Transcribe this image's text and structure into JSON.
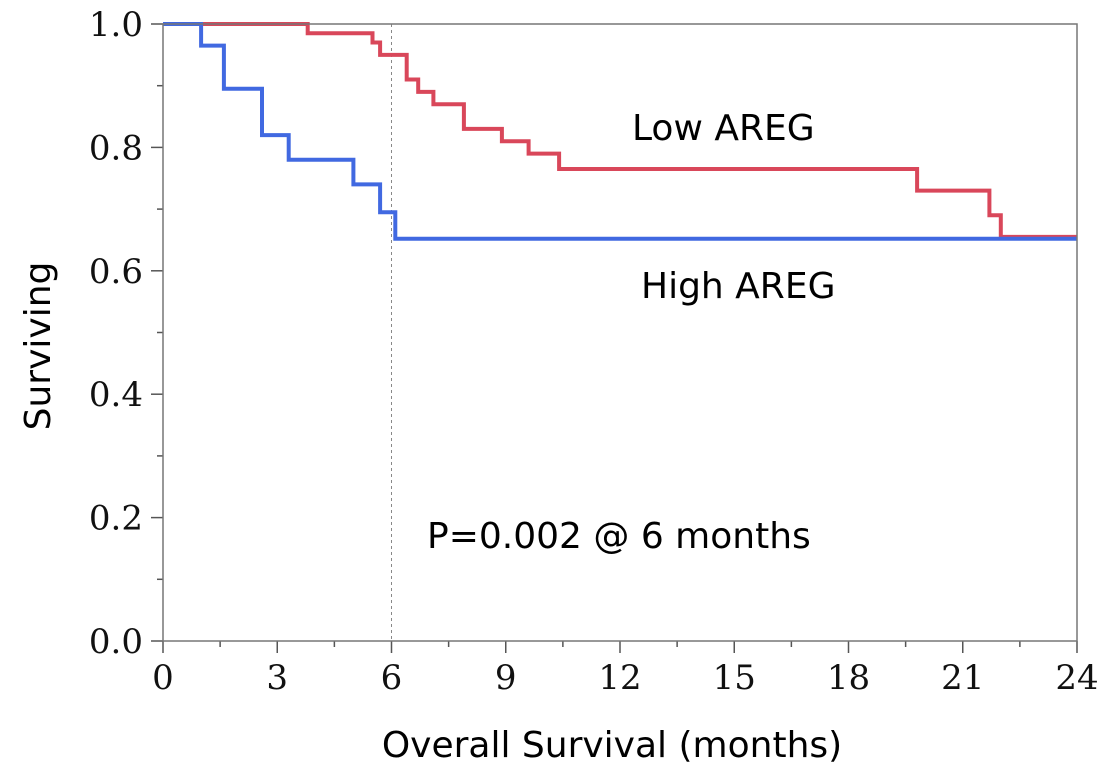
{
  "chart_data": {
    "type": "line",
    "step": true,
    "xlabel": "Overall Survival (months)",
    "ylabel": "Surviving",
    "xlim": [
      0,
      24
    ],
    "ylim": [
      0,
      1
    ],
    "xticks": [
      0,
      3,
      6,
      9,
      12,
      15,
      18,
      21,
      24
    ],
    "yticks": [
      0.0,
      0.2,
      0.4,
      0.6,
      0.8,
      1.0
    ],
    "ytick_labels": [
      "0.0",
      "0.2",
      "0.4",
      "0.6",
      "0.8",
      "1.0"
    ],
    "grid": false,
    "reference_line_x": 6,
    "series": [
      {
        "name": "Low AREG",
        "color": "#d9475a",
        "points": [
          [
            0,
            1.0
          ],
          [
            3.8,
            1.0
          ],
          [
            3.8,
            0.985
          ],
          [
            5.5,
            0.985
          ],
          [
            5.5,
            0.97
          ],
          [
            5.7,
            0.97
          ],
          [
            5.7,
            0.95
          ],
          [
            6.4,
            0.95
          ],
          [
            6.4,
            0.91
          ],
          [
            6.7,
            0.91
          ],
          [
            6.7,
            0.89
          ],
          [
            7.1,
            0.89
          ],
          [
            7.1,
            0.87
          ],
          [
            7.9,
            0.87
          ],
          [
            7.9,
            0.83
          ],
          [
            8.9,
            0.83
          ],
          [
            8.9,
            0.81
          ],
          [
            9.6,
            0.81
          ],
          [
            9.6,
            0.79
          ],
          [
            10.4,
            0.79
          ],
          [
            10.4,
            0.765
          ],
          [
            19.8,
            0.765
          ],
          [
            19.8,
            0.73
          ],
          [
            21.7,
            0.73
          ],
          [
            21.7,
            0.69
          ],
          [
            22.0,
            0.69
          ],
          [
            22.0,
            0.655
          ],
          [
            24,
            0.655
          ]
        ]
      },
      {
        "name": "High AREG",
        "color": "#4169e1",
        "points": [
          [
            0,
            1.0
          ],
          [
            1.0,
            1.0
          ],
          [
            1.0,
            0.965
          ],
          [
            1.6,
            0.965
          ],
          [
            1.6,
            0.895
          ],
          [
            2.6,
            0.895
          ],
          [
            2.6,
            0.82
          ],
          [
            3.3,
            0.82
          ],
          [
            3.3,
            0.78
          ],
          [
            5.0,
            0.78
          ],
          [
            5.0,
            0.74
          ],
          [
            5.7,
            0.74
          ],
          [
            5.7,
            0.695
          ],
          [
            6.1,
            0.695
          ],
          [
            6.1,
            0.652
          ],
          [
            24,
            0.652
          ]
        ]
      }
    ],
    "labels": {
      "low": "Low AREG",
      "high": "High AREG",
      "pvalue": "P=0.002 @ 6 months"
    }
  }
}
